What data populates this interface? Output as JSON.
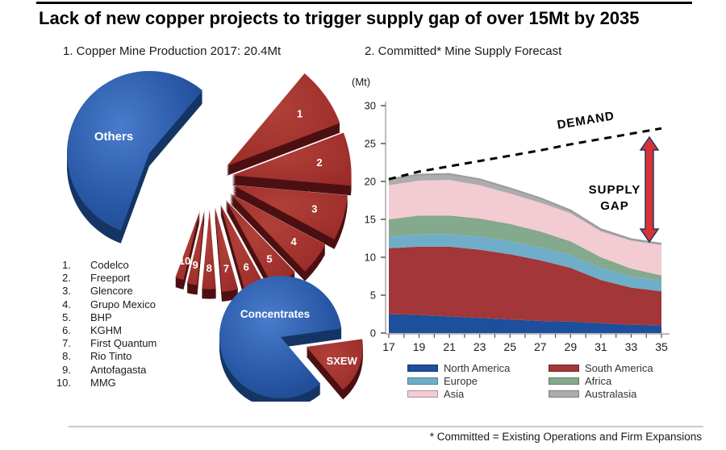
{
  "title": "Lack of new copper projects to trigger supply gap of over 15Mt by 2035",
  "left_heading": "1. Copper Mine Production 2017: 20.4Mt",
  "right_heading": "2. Committed* Mine Supply Forecast",
  "footnote": "* Committed = Existing Operations and Firm Expansions",
  "producers": [
    {
      "rank": "1.",
      "name": "Codelco"
    },
    {
      "rank": "2.",
      "name": "Freeport"
    },
    {
      "rank": "3.",
      "name": "Glencore"
    },
    {
      "rank": "4.",
      "name": "Grupo Mexico"
    },
    {
      "rank": "5.",
      "name": "BHP"
    },
    {
      "rank": "6.",
      "name": "KGHM"
    },
    {
      "rank": "7.",
      "name": "First Quantum"
    },
    {
      "rank": "8.",
      "name": "Rio Tinto"
    },
    {
      "rank": "9.",
      "name": "Antofagasta"
    },
    {
      "rank": "10.",
      "name": "MMG"
    }
  ],
  "chart_data": [
    {
      "id": "production-pie",
      "type": "pie",
      "title": "1. Copper Mine Production 2017: 20.4Mt",
      "unit": "Mt",
      "total": 20.4,
      "slices": [
        {
          "label": "Others",
          "share_pct": 55.6,
          "color": "blue"
        },
        {
          "label": "1",
          "name": "Codelco",
          "share_pct": 8.1,
          "color": "red"
        },
        {
          "label": "2",
          "name": "Freeport",
          "share_pct": 7.2,
          "color": "red"
        },
        {
          "label": "3",
          "name": "Glencore",
          "share_pct": 6.4,
          "color": "red"
        },
        {
          "label": "4",
          "name": "Grupo Mexico",
          "share_pct": 5.0,
          "color": "red"
        },
        {
          "label": "5",
          "name": "BHP",
          "share_pct": 4.2,
          "color": "red"
        },
        {
          "label": "6",
          "name": "KGHM",
          "share_pct": 3.6,
          "color": "red"
        },
        {
          "label": "7",
          "name": "First Quantum",
          "share_pct": 3.1,
          "color": "red"
        },
        {
          "label": "8",
          "name": "Rio Tinto",
          "share_pct": 2.8,
          "color": "red"
        },
        {
          "label": "9",
          "name": "Antofagasta",
          "share_pct": 2.2,
          "color": "red"
        },
        {
          "label": "10",
          "name": "MMG",
          "share_pct": 1.9,
          "color": "red"
        }
      ]
    },
    {
      "id": "concentrates-sxew-pie",
      "type": "pie",
      "slices": [
        {
          "label": "Concentrates",
          "share_pct": 84,
          "color": "blue"
        },
        {
          "label": "SXEW",
          "share_pct": 16,
          "color": "red"
        }
      ]
    },
    {
      "id": "committed-supply-forecast",
      "type": "area",
      "title": "2. Committed* Mine Supply Forecast",
      "ylabel": "(Mt)",
      "ylim": [
        0,
        30
      ],
      "yticks": [
        0,
        5,
        10,
        15,
        20,
        25,
        30
      ],
      "grid": false,
      "legend_position": "bottom",
      "categories": [
        17,
        19,
        21,
        23,
        25,
        27,
        29,
        31,
        33,
        35
      ],
      "series": [
        {
          "name": "North America",
          "color": "#1D4F9C",
          "values": [
            2.5,
            2.4,
            2.2,
            2.0,
            1.8,
            1.6,
            1.5,
            1.3,
            1.1,
            1.0
          ]
        },
        {
          "name": "South America",
          "color": "#A33638",
          "values": [
            8.7,
            9.0,
            9.2,
            9.0,
            8.6,
            8.0,
            7.1,
            5.7,
            4.9,
            4.5
          ]
        },
        {
          "name": "Europe",
          "color": "#6FAEC9",
          "values": [
            1.5,
            1.6,
            1.6,
            1.7,
            1.7,
            1.7,
            1.7,
            1.6,
            1.5,
            1.4
          ]
        },
        {
          "name": "Africa",
          "color": "#84A98C",
          "values": [
            2.3,
            2.5,
            2.5,
            2.4,
            2.3,
            2.1,
            1.8,
            1.4,
            1.0,
            0.7
          ]
        },
        {
          "name": "Asia",
          "color": "#F3CBD3",
          "values": [
            4.5,
            4.6,
            4.7,
            4.4,
            4.0,
            3.8,
            3.7,
            3.4,
            3.7,
            4.0
          ]
        },
        {
          "name": "Australasia",
          "color": "#ACACAC",
          "values": [
            0.8,
            0.8,
            0.8,
            0.8,
            0.7,
            0.6,
            0.4,
            0.3,
            0.2,
            0.2
          ]
        }
      ],
      "demand_line": {
        "label": "DEMAND",
        "style": "dashed",
        "color": "#000000",
        "values": [
          20.3,
          21.3,
          22.0,
          22.7,
          23.4,
          24.1,
          24.9,
          25.6,
          26.3,
          27.0
        ]
      },
      "annotations": {
        "supply_gap_label_line1": "SUPPLY",
        "supply_gap_label_line2": "GAP",
        "arrow_color": "#D93135",
        "arrow_outline": "#1F3864"
      }
    }
  ]
}
